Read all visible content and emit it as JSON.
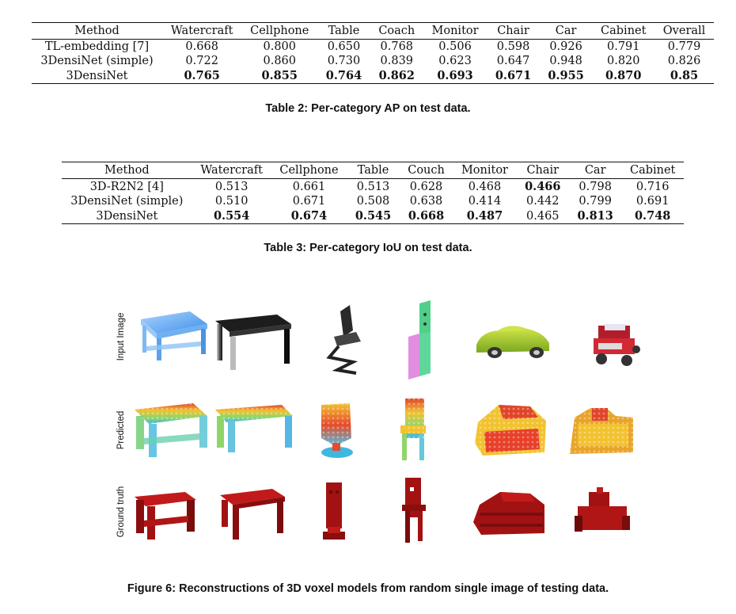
{
  "table2": {
    "headers": [
      "Method",
      "Watercraft",
      "Cellphone",
      "Table",
      "Coach",
      "Monitor",
      "Chair",
      "Car",
      "Cabinet",
      "Overall"
    ],
    "rows": [
      {
        "method": "TL-embedding [7]",
        "values": [
          "0.668",
          "0.800",
          "0.650",
          "0.768",
          "0.506",
          "0.598",
          "0.926",
          "0.791",
          "0.779"
        ],
        "bold": [
          false,
          false,
          false,
          false,
          false,
          false,
          false,
          false,
          false
        ]
      },
      {
        "method": "3DensiNet (simple)",
        "values": [
          "0.722",
          "0.860",
          "0.730",
          "0.839",
          "0.623",
          "0.647",
          "0.948",
          "0.820",
          "0.826"
        ],
        "bold": [
          false,
          false,
          false,
          false,
          false,
          false,
          false,
          false,
          false
        ]
      },
      {
        "method": "3DensiNet",
        "values": [
          "0.765",
          "0.855",
          "0.764",
          "0.862",
          "0.693",
          "0.671",
          "0.955",
          "0.870",
          "0.85"
        ],
        "bold": [
          true,
          true,
          true,
          true,
          true,
          true,
          true,
          true,
          true
        ]
      }
    ],
    "caption": "Table 2: Per-category AP on test data."
  },
  "table3": {
    "headers": [
      "Method",
      "Watercraft",
      "Cellphone",
      "Table",
      "Couch",
      "Monitor",
      "Chair",
      "Car",
      "Cabinet"
    ],
    "rows": [
      {
        "method": "3D-R2N2 [4]",
        "values": [
          "0.513",
          "0.661",
          "0.513",
          "0.628",
          "0.468",
          "0.466",
          "0.798",
          "0.716"
        ],
        "bold": [
          false,
          false,
          false,
          false,
          false,
          true,
          false,
          false
        ]
      },
      {
        "method": "3DensiNet (simple)",
        "values": [
          "0.510",
          "0.671",
          "0.508",
          "0.638",
          "0.414",
          "0.442",
          "0.799",
          "0.691"
        ],
        "bold": [
          false,
          false,
          false,
          false,
          false,
          false,
          false,
          false
        ]
      },
      {
        "method": "3DensiNet",
        "values": [
          "0.554",
          "0.674",
          "0.545",
          "0.668",
          "0.487",
          "0.465",
          "0.813",
          "0.748"
        ],
        "bold": [
          true,
          true,
          true,
          true,
          true,
          false,
          true,
          true
        ]
      }
    ],
    "caption": "Table 3: Per-category IoU on test data."
  },
  "figure6": {
    "row_labels": [
      "Input Image",
      "Predicted",
      "Ground truth"
    ],
    "caption": "Figure 6: Reconstructions of 3D voxel models from random single image of testing data."
  }
}
